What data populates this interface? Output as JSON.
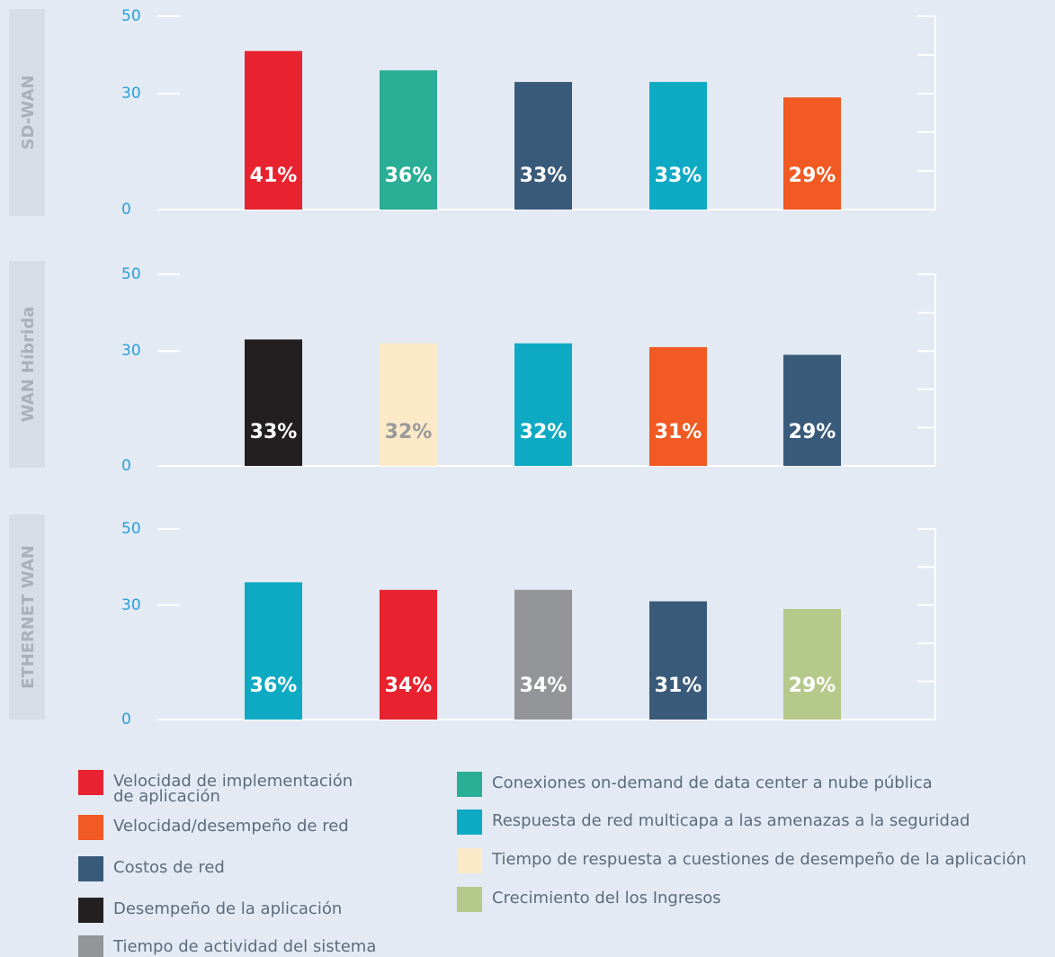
{
  "chart_data": [
    {
      "type": "bar",
      "title": "SD-WAN",
      "values": [
        41,
        36,
        33,
        33,
        29
      ],
      "value_labels": [
        "41%",
        "36%",
        "33%",
        "33%",
        "29%"
      ],
      "colors": [
        "#e8222f",
        "#2aae96",
        "#3a5a7a",
        "#0eaac4",
        "#f15a22"
      ],
      "label_colors": [
        "#ffffff",
        "#ffffff",
        "#ffffff",
        "#ffffff",
        "#ffffff"
      ],
      "ylim": [
        0,
        50
      ],
      "yticks": [
        0,
        30,
        50
      ],
      "y2lim": [
        0,
        50
      ],
      "y2ticks": [
        0,
        10,
        20,
        30,
        40,
        50
      ]
    },
    {
      "type": "bar",
      "title": "WAN Híbrida",
      "values": [
        33,
        32,
        32,
        31,
        29
      ],
      "value_labels": [
        "33%",
        "32%",
        "32%",
        "31%",
        "29%"
      ],
      "colors": [
        "#231f20",
        "#fbe9c8",
        "#0eaac4",
        "#f15a22",
        "#3a5a7a"
      ],
      "label_colors": [
        "#ffffff",
        "#9a9a9a",
        "#ffffff",
        "#ffffff",
        "#ffffff"
      ],
      "ylim": [
        0,
        50
      ],
      "yticks": [
        0,
        30,
        50
      ],
      "y2lim": [
        0,
        50
      ],
      "y2ticks": [
        0,
        10,
        20,
        30,
        40,
        50
      ]
    },
    {
      "type": "bar",
      "title": "ETHERNET WAN",
      "values": [
        36,
        34,
        34,
        31,
        29
      ],
      "value_labels": [
        "36%",
        "34%",
        "34%",
        "31%",
        "29%"
      ],
      "colors": [
        "#0eaac4",
        "#e8222f",
        "#939598",
        "#3a5a7a",
        "#b5c98a"
      ],
      "label_colors": [
        "#ffffff",
        "#ffffff",
        "#ffffff",
        "#ffffff",
        "#ffffff"
      ],
      "ylim": [
        0,
        50
      ],
      "yticks": [
        0,
        30,
        50
      ],
      "y2lim": [
        0,
        50
      ],
      "y2ticks": [
        0,
        10,
        20,
        30,
        40,
        50
      ]
    }
  ],
  "legend": [
    {
      "name": "Velocidad de implementación de aplicación",
      "color": "#e8222f"
    },
    {
      "name": "Velocidad/desempeño de red",
      "color": "#f15a22"
    },
    {
      "name": "Costos de red",
      "color": "#3a5a7a"
    },
    {
      "name": "Desempeño de la aplicación",
      "color": "#231f20"
    },
    {
      "name": "Tiempo de actividad del sistema",
      "color": "#939598"
    },
    {
      "name": "Conexiones on-demand de data center a nube pública",
      "color": "#2aae96"
    },
    {
      "name": "Respuesta de red multicapa a las amenazas a la seguridad",
      "color": "#0eaac4"
    },
    {
      "name": "Tiempo de respuesta a cuestiones de desempeño de la aplicación",
      "color": "#fbe9c8"
    },
    {
      "name": "Crecimiento del los Ingresos",
      "color": "#b5c98a"
    }
  ]
}
